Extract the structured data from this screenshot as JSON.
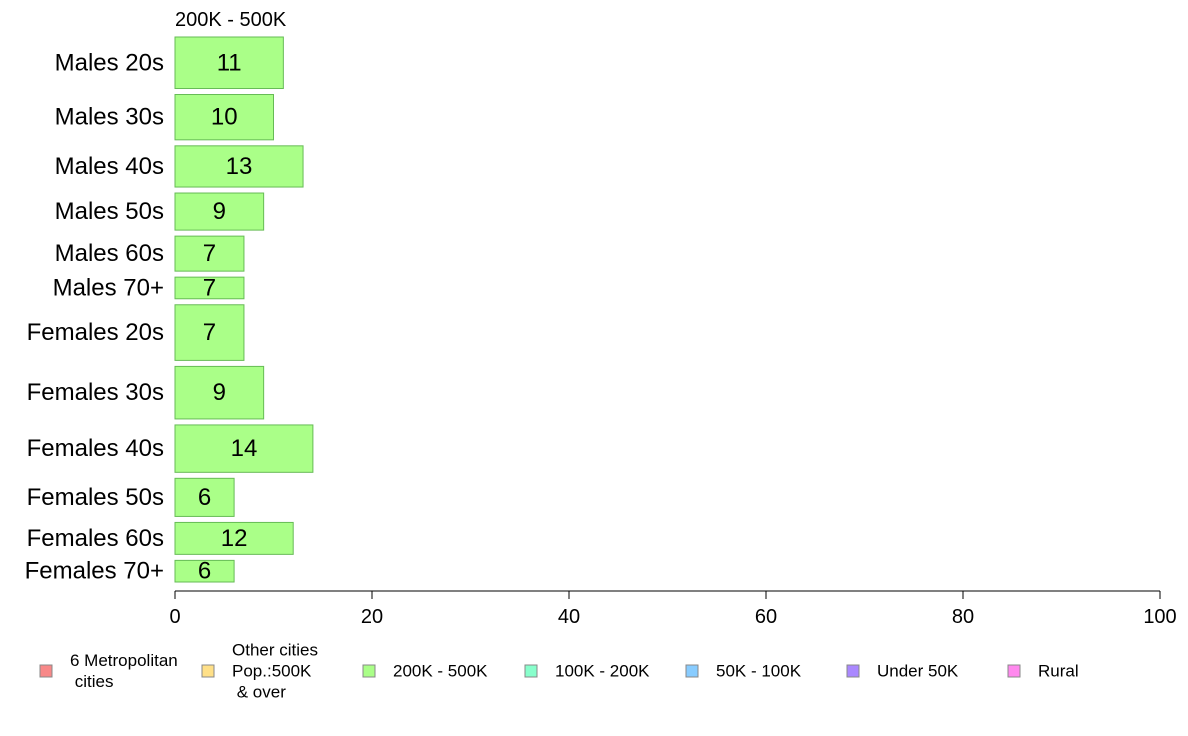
{
  "chart_data": {
    "type": "bar",
    "orientation": "horizontal",
    "title": "200K - 500K",
    "categories": [
      "Males 20s",
      "Males 30s",
      "Males 40s",
      "Males 50s",
      "Males 60s",
      "Males 70+",
      "Females 20s",
      "Females 30s",
      "Females 40s",
      "Females 50s",
      "Females 60s",
      "Females 70+"
    ],
    "values": [
      11,
      10,
      13,
      9,
      7,
      7,
      7,
      9,
      14,
      6,
      12,
      6
    ],
    "relative_widths": [
      50,
      44,
      40,
      36,
      34,
      21,
      54,
      51,
      46,
      37,
      31,
      21
    ],
    "xlim": [
      0,
      100
    ],
    "xticks": [
      0,
      20,
      40,
      60,
      80,
      100
    ],
    "xlabel": "",
    "ylabel": "",
    "bar_color": "#aaff88",
    "bar_stroke": "#66bb55",
    "legend_position": "bottom",
    "legend": [
      {
        "lines": [
          "6 Metropolitan",
          " cities"
        ],
        "color": "#f88888"
      },
      {
        "lines": [
          "Other cities",
          "Pop.:500K",
          " & over"
        ],
        "color": "#ffe088"
      },
      {
        "lines": [
          "200K - 500K"
        ],
        "color": "#aaff88"
      },
      {
        "lines": [
          "100K - 200K"
        ],
        "color": "#88ffcc"
      },
      {
        "lines": [
          "50K - 100K"
        ],
        "color": "#88ccff"
      },
      {
        "lines": [
          "Under 50K"
        ],
        "color": "#aa88ff"
      },
      {
        "lines": [
          "Rural"
        ],
        "color": "#ff88ee"
      }
    ]
  }
}
